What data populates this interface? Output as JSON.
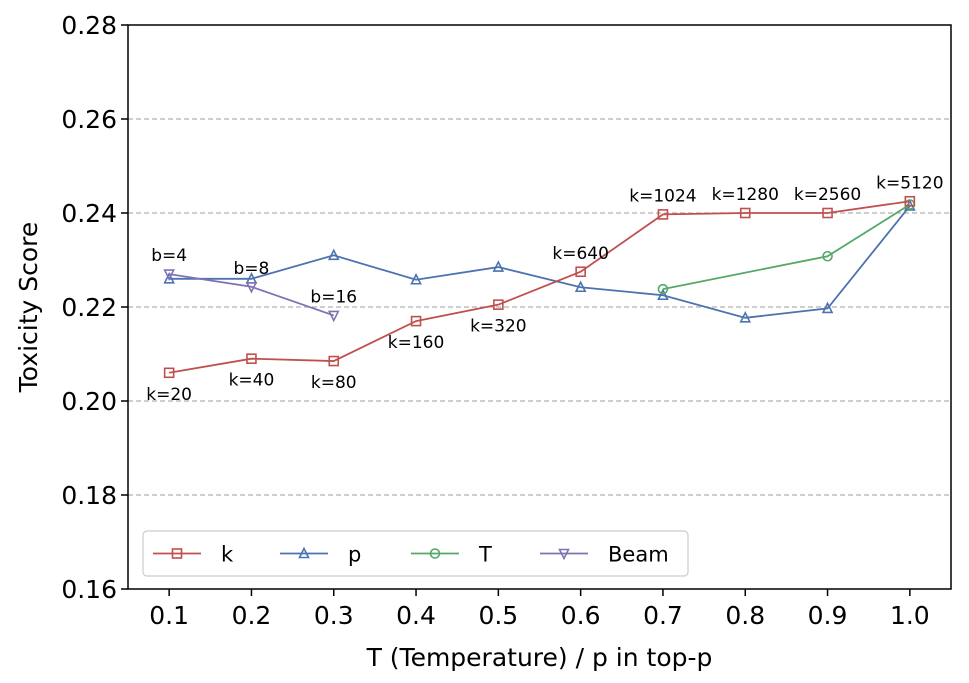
{
  "chart_data": {
    "type": "line",
    "title": "",
    "xlabel": "T (Temperature) / p in top-p",
    "ylabel": "Toxicity Score",
    "xlim": [
      0.05,
      1.05
    ],
    "ylim": [
      0.16,
      0.28
    ],
    "xticks": [
      0.1,
      0.2,
      0.3,
      0.4,
      0.5,
      0.6,
      0.7,
      0.8,
      0.9,
      1.0
    ],
    "xtick_labels": [
      "0.1",
      "0.2",
      "0.3",
      "0.4",
      "0.5",
      "0.6",
      "0.7",
      "0.8",
      "0.9",
      "1.0"
    ],
    "yticks": [
      0.16,
      0.18,
      0.2,
      0.22,
      0.24,
      0.26,
      0.28
    ],
    "ytick_labels": [
      "0.16",
      "0.18",
      "0.20",
      "0.22",
      "0.24",
      "0.26",
      "0.28"
    ],
    "grid": "horizontal dashed",
    "legend_position": "lower-left",
    "series": [
      {
        "name": "k",
        "color": "#c0504d",
        "marker": "square",
        "x": [
          0.1,
          0.2,
          0.3,
          0.4,
          0.5,
          0.6,
          0.7,
          0.8,
          0.9,
          1.0
        ],
        "y": [
          0.206,
          0.209,
          0.2085,
          0.217,
          0.2205,
          0.2275,
          0.2397,
          0.24,
          0.24,
          0.2425
        ],
        "labels": [
          "k=20",
          "k=40",
          "k=80",
          "k=160",
          "k=320",
          "k=640",
          "k=1024",
          "k=1280",
          "k=2560",
          "k=5120"
        ],
        "label_side": [
          "below",
          "below",
          "below",
          "below",
          "below",
          "above",
          "above",
          "above",
          "above",
          "above"
        ]
      },
      {
        "name": "p",
        "color": "#4c72b0",
        "marker": "triangle-up",
        "x": [
          0.1,
          0.2,
          0.3,
          0.4,
          0.5,
          0.6,
          0.7,
          0.8,
          0.9,
          1.0
        ],
        "y": [
          0.226,
          0.226,
          0.231,
          0.2258,
          0.2285,
          0.2242,
          0.2225,
          0.2177,
          0.2197,
          0.2415
        ]
      },
      {
        "name": "T",
        "color": "#55a868",
        "marker": "circle",
        "x": [
          0.7,
          0.9,
          1.0
        ],
        "y": [
          0.2238,
          0.2308,
          0.2418
        ]
      },
      {
        "name": "Beam",
        "color": "#8172b2",
        "marker": "triangle-down",
        "x": [
          0.1,
          0.2,
          0.3
        ],
        "y": [
          0.227,
          0.2243,
          0.2182
        ],
        "labels": [
          "b=4",
          "b=8",
          "b=16"
        ],
        "label_side": [
          "above",
          "above",
          "above"
        ]
      }
    ]
  }
}
